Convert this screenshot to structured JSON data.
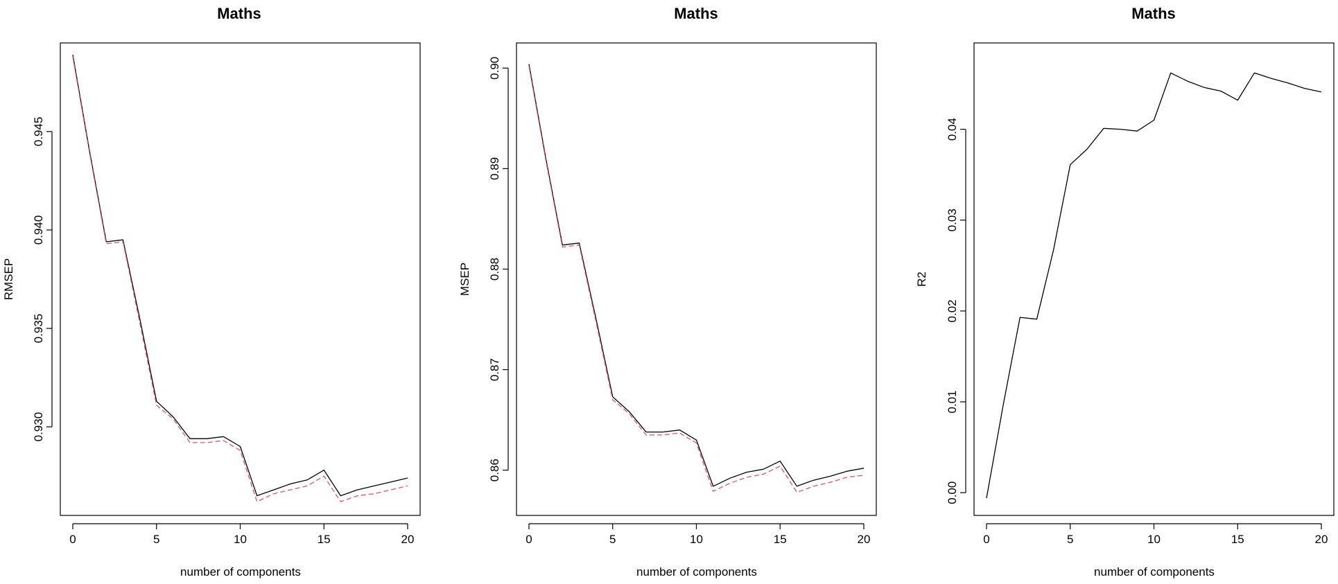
{
  "chart_data": [
    {
      "type": "line",
      "title": "Maths",
      "xlabel": "number of components",
      "ylabel": "RMSEP",
      "xlim": [
        0,
        20
      ],
      "ylim": [
        0.9255,
        0.9495
      ],
      "xticks": [
        0,
        5,
        10,
        15,
        20
      ],
      "yticks": [
        0.93,
        0.935,
        0.94,
        0.945
      ],
      "ytick_labels": [
        "0.930",
        "0.935",
        "0.940",
        "0.945"
      ],
      "x": [
        0,
        1,
        2,
        3,
        4,
        5,
        6,
        7,
        8,
        9,
        10,
        11,
        12,
        13,
        14,
        15,
        16,
        17,
        18,
        19,
        20
      ],
      "series": [
        {
          "color": "#000000",
          "dash": "solid",
          "values": [
            0.9489,
            0.944,
            0.9394,
            0.9395,
            0.9355,
            0.9313,
            0.9305,
            0.9294,
            0.9294,
            0.9295,
            0.929,
            0.9265,
            0.9268,
            0.9271,
            0.9273,
            0.9278,
            0.9265,
            0.9268,
            0.927,
            0.9272,
            0.9274
          ]
        },
        {
          "color": "#df536b",
          "dash": "dashed",
          "values": [
            0.9488,
            0.9439,
            0.9393,
            0.9394,
            0.9353,
            0.9311,
            0.9304,
            0.9292,
            0.9292,
            0.9293,
            0.9288,
            0.9262,
            0.9266,
            0.9268,
            0.927,
            0.9275,
            0.9262,
            0.9265,
            0.9266,
            0.9268,
            0.927
          ]
        }
      ]
    },
    {
      "type": "line",
      "title": "Maths",
      "xlabel": "number of components",
      "ylabel": "MSEP",
      "xlim": [
        0,
        20
      ],
      "ylim": [
        0.8555,
        0.9025
      ],
      "xticks": [
        0,
        5,
        10,
        15,
        20
      ],
      "yticks": [
        0.86,
        0.87,
        0.88,
        0.89,
        0.9
      ],
      "ytick_labels": [
        "0.86",
        "0.87",
        "0.88",
        "0.89",
        "0.90"
      ],
      "x": [
        0,
        1,
        2,
        3,
        4,
        5,
        6,
        7,
        8,
        9,
        10,
        11,
        12,
        13,
        14,
        15,
        16,
        17,
        18,
        19,
        20
      ],
      "series": [
        {
          "color": "#000000",
          "dash": "solid",
          "values": [
            0.9004,
            0.8911,
            0.8824,
            0.8826,
            0.8751,
            0.8673,
            0.8658,
            0.8638,
            0.8638,
            0.864,
            0.863,
            0.8584,
            0.8592,
            0.8598,
            0.8601,
            0.8609,
            0.8584,
            0.859,
            0.8594,
            0.8599,
            0.8602
          ]
        },
        {
          "color": "#df536b",
          "dash": "dashed",
          "values": [
            0.9002,
            0.8909,
            0.8822,
            0.8824,
            0.8748,
            0.867,
            0.8656,
            0.8635,
            0.8635,
            0.8637,
            0.8627,
            0.8579,
            0.8587,
            0.8593,
            0.8596,
            0.8604,
            0.8578,
            0.8584,
            0.8588,
            0.8593,
            0.8595
          ]
        }
      ]
    },
    {
      "type": "line",
      "title": "Maths",
      "xlabel": "number of components",
      "ylabel": "R2",
      "xlim": [
        0,
        20
      ],
      "ylim": [
        -0.0025,
        0.0495
      ],
      "xticks": [
        0,
        5,
        10,
        15,
        20
      ],
      "yticks": [
        0.0,
        0.01,
        0.02,
        0.03,
        0.04
      ],
      "ytick_labels": [
        "0.00",
        "0.01",
        "0.02",
        "0.03",
        "0.04"
      ],
      "x": [
        0,
        1,
        2,
        3,
        4,
        5,
        6,
        7,
        8,
        9,
        10,
        11,
        12,
        13,
        14,
        15,
        16,
        17,
        18,
        19,
        20
      ],
      "series": [
        {
          "color": "#000000",
          "dash": "solid",
          "values": [
            -0.0006,
            0.0097,
            0.0193,
            0.0191,
            0.0267,
            0.0361,
            0.0378,
            0.0401,
            0.04,
            0.0398,
            0.041,
            0.0462,
            0.0453,
            0.0446,
            0.0442,
            0.0432,
            0.0462,
            0.0456,
            0.0451,
            0.0445,
            0.0441
          ]
        }
      ]
    }
  ]
}
